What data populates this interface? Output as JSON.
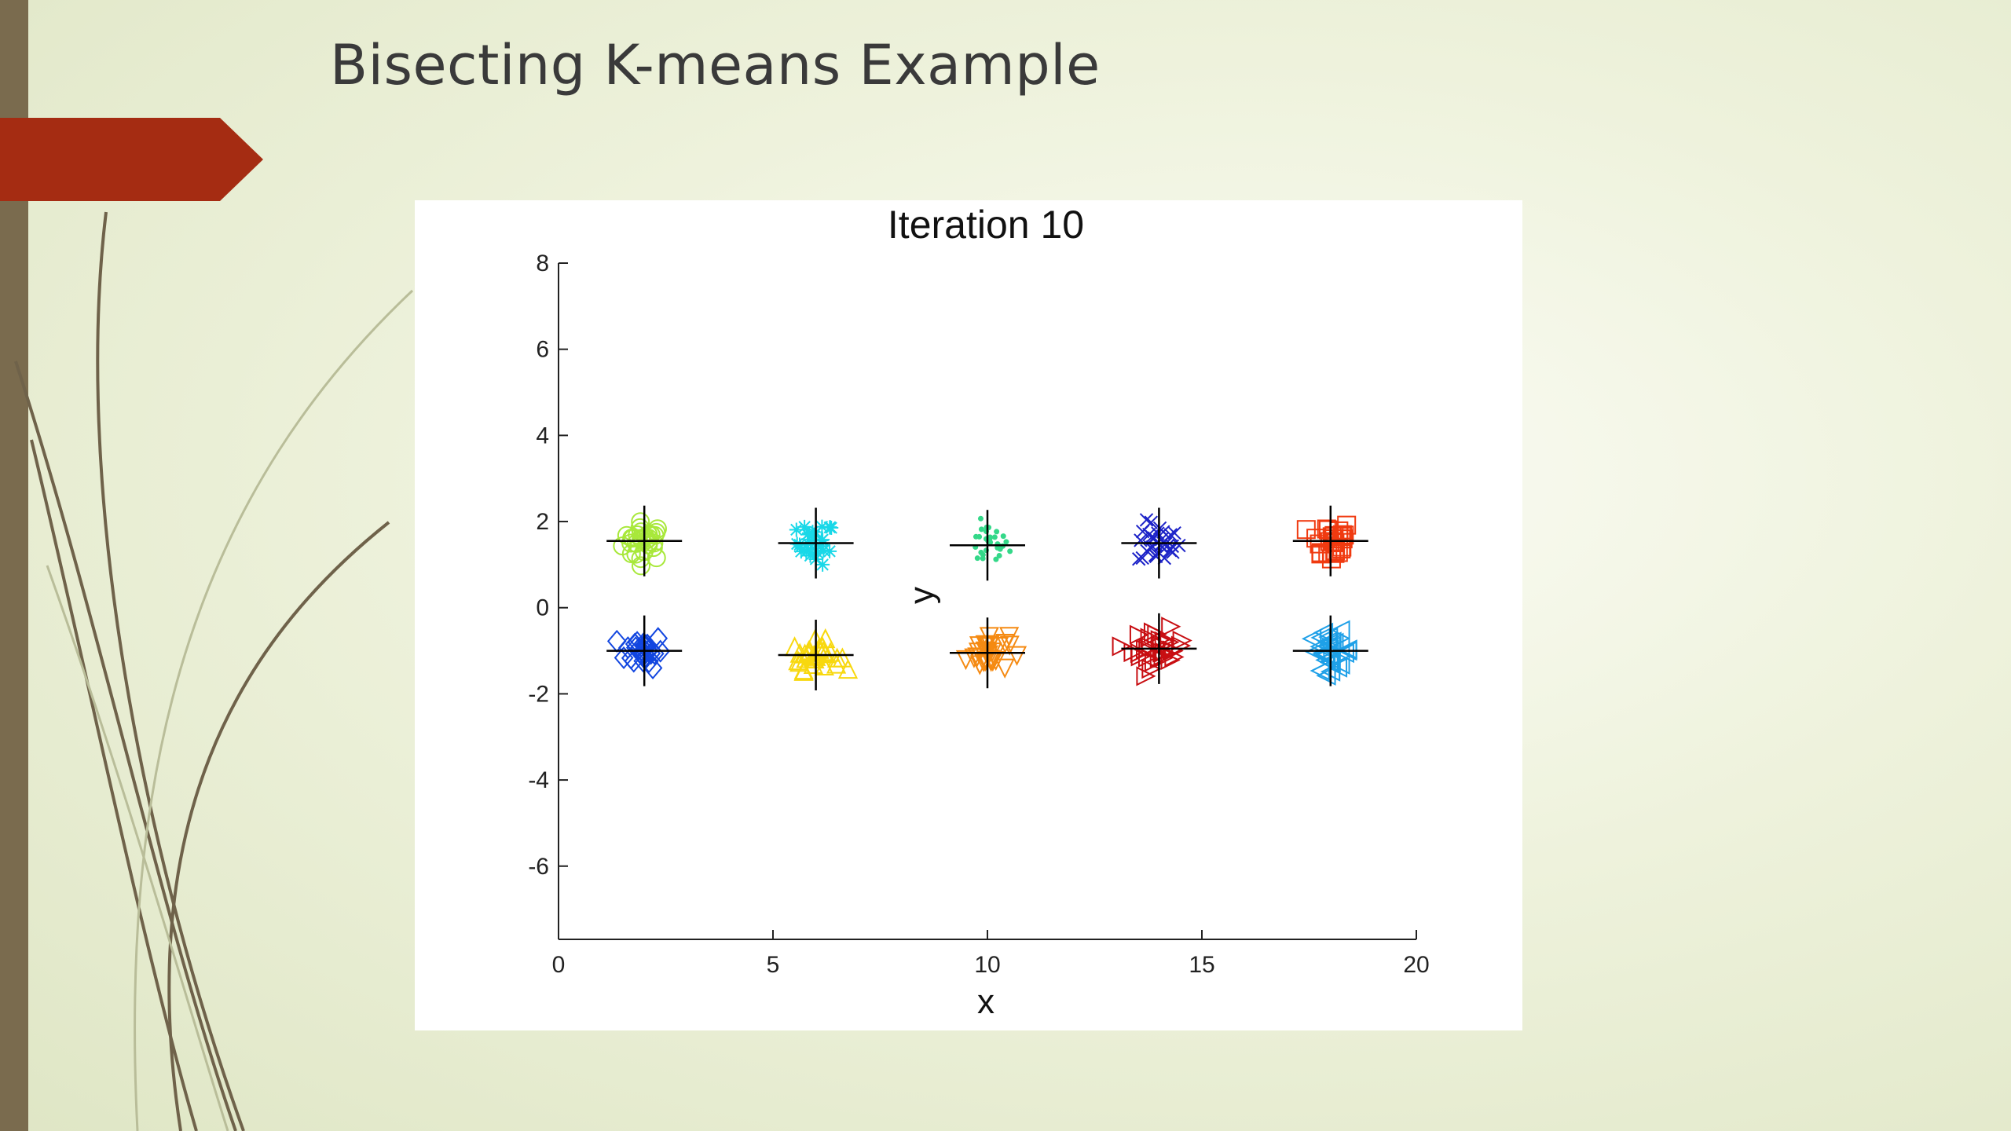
{
  "slide": {
    "title": "Bisecting K-means Example"
  },
  "theme": {
    "left_bar_color": "#7a6b4e",
    "arrow_color": "#a52c12",
    "line_color": "#6f624a"
  },
  "chart_data": {
    "type": "scatter",
    "title": "Iteration 10",
    "xlabel": "x",
    "ylabel": "y",
    "xlim": [
      0,
      20
    ],
    "ylim": [
      -7.7,
      8
    ],
    "xticks": [
      0,
      5,
      10,
      15,
      20
    ],
    "yticks": [
      -6,
      -4,
      -2,
      0,
      2,
      4,
      6,
      8
    ],
    "grid": false,
    "clusters": [
      {
        "center": [
          2,
          1.55
        ],
        "color": "#a8e83a",
        "marker": "circle",
        "spread": [
          0.45,
          0.4
        ]
      },
      {
        "center": [
          6,
          1.5
        ],
        "color": "#19d8e8",
        "marker": "asterisk",
        "spread": [
          0.4,
          0.45
        ]
      },
      {
        "center": [
          10,
          1.45
        ],
        "color": "#34d889",
        "marker": "dot",
        "spread": [
          0.45,
          0.45
        ]
      },
      {
        "center": [
          14,
          1.5
        ],
        "color": "#1c22c8",
        "marker": "x",
        "spread": [
          0.45,
          0.45
        ]
      },
      {
        "center": [
          18,
          1.55
        ],
        "color": "#f03a10",
        "marker": "square",
        "spread": [
          0.45,
          0.45
        ]
      },
      {
        "center": [
          2,
          -1.0
        ],
        "color": "#1246e0",
        "marker": "diamond",
        "spread": [
          0.4,
          0.35
        ]
      },
      {
        "center": [
          6,
          -1.1
        ],
        "color": "#f8d80e",
        "marker": "triangle-up",
        "spread": [
          0.5,
          0.3
        ]
      },
      {
        "center": [
          10,
          -1.05
        ],
        "color": "#f58a12",
        "marker": "triangle-down",
        "spread": [
          0.45,
          0.4
        ]
      },
      {
        "center": [
          14,
          -0.95
        ],
        "color": "#c80e12",
        "marker": "triangle-right",
        "spread": [
          0.55,
          0.4
        ]
      },
      {
        "center": [
          18,
          -1.0
        ],
        "color": "#1ea0e8",
        "marker": "triangle-left",
        "spread": [
          0.45,
          0.4
        ]
      }
    ]
  }
}
